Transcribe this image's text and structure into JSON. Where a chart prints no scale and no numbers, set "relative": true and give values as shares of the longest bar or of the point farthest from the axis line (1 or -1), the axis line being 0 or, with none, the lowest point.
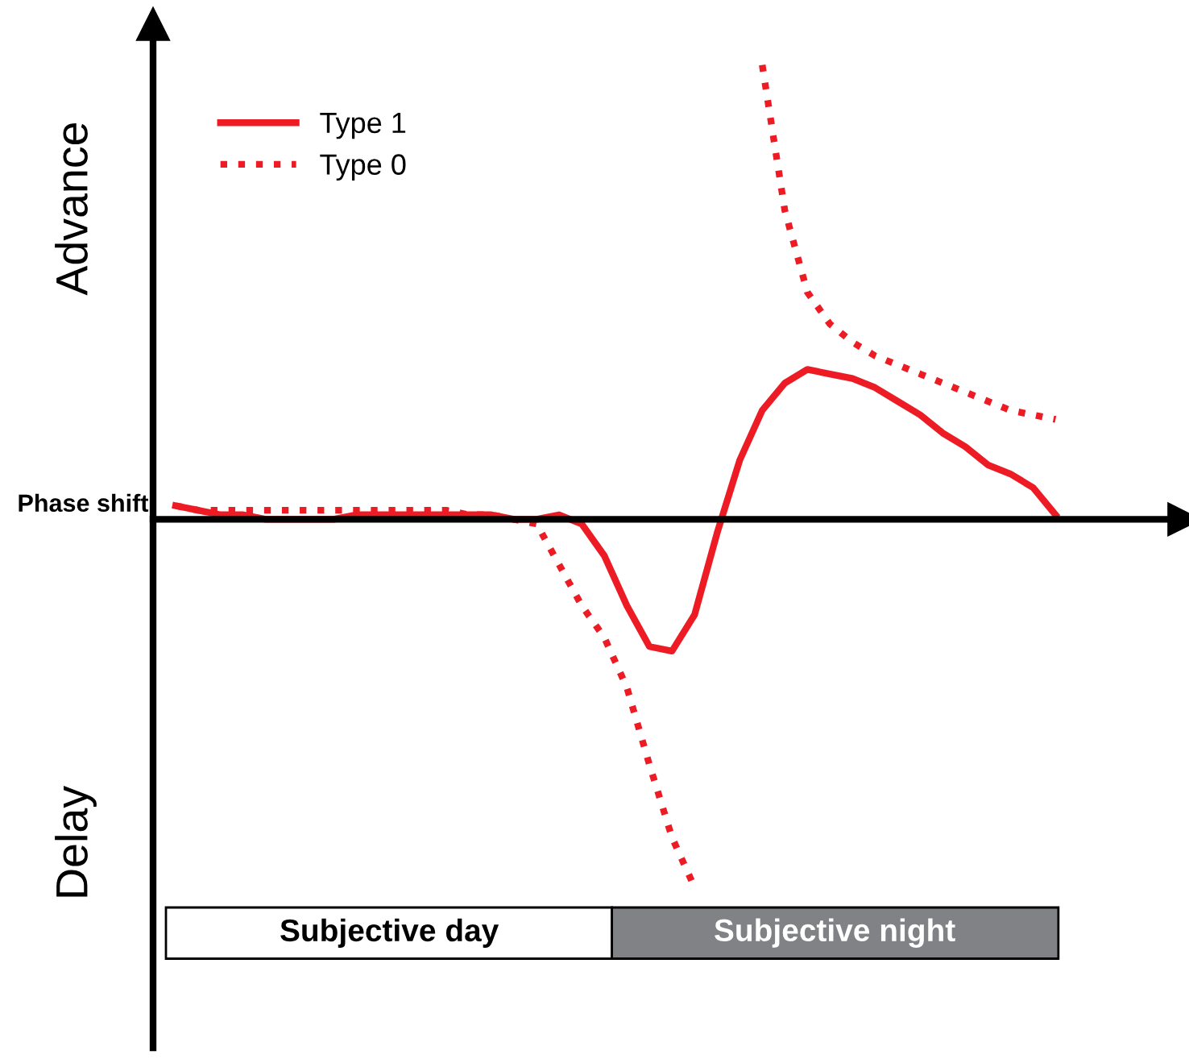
{
  "chart_data": {
    "type": "line",
    "relative": true,
    "categories": [
      null,
      null,
      null,
      null,
      null,
      null,
      null,
      null,
      null,
      null,
      null,
      null,
      null,
      null,
      null,
      null,
      null,
      null,
      null,
      null,
      null,
      null,
      null,
      null,
      null,
      null,
      null,
      null,
      null,
      null,
      null,
      null,
      null,
      null,
      null,
      null,
      null,
      null,
      null,
      null
    ],
    "series": [
      {
        "name": "Type 1",
        "color": "#ed1c24",
        "line_style": "solid",
        "values": [
          0.03,
          0.02,
          0.01,
          0.01,
          0.0,
          0,
          0,
          0.0,
          0.01,
          0.01,
          0.01,
          0.01,
          0.01,
          0.01,
          0.01,
          0.0,
          0.0,
          0.01,
          -0.01,
          -0.08,
          -0.19,
          -0.28,
          -0.29,
          -0.21,
          -0.03,
          0.13,
          0.24,
          0.3,
          0.33,
          0.32,
          0.31,
          0.29,
          0.26,
          0.23,
          0.19,
          0.16,
          0.12,
          0.1,
          0.07,
          0.01
        ]
      },
      {
        "name": "Type 0",
        "color": "#ed1c24",
        "line_style": "dotted",
        "values": [
          0.03,
          0.02,
          0.02,
          0.02,
          0.02,
          0.02,
          0.02,
          0.02,
          0.02,
          0.02,
          0.02,
          0.02,
          0.02,
          0.01,
          0.01,
          0.0,
          -0.01,
          -0.1,
          -0.19,
          -0.26,
          -0.37,
          -0.54,
          -0.7,
          -0.81,
          null,
          null,
          1,
          0.68,
          0.5,
          0.43,
          0.39,
          0.36,
          0.34,
          0.32,
          0.3,
          0.28,
          0.26,
          0.24,
          0.23,
          0.22
        ]
      }
    ],
    "annotations": [
      "Advance",
      "Phase shift",
      "Delay",
      "Subjective day",
      "Subjective night"
    ],
    "legend": "top left",
    "grid": false,
    "marker": "none"
  }
}
